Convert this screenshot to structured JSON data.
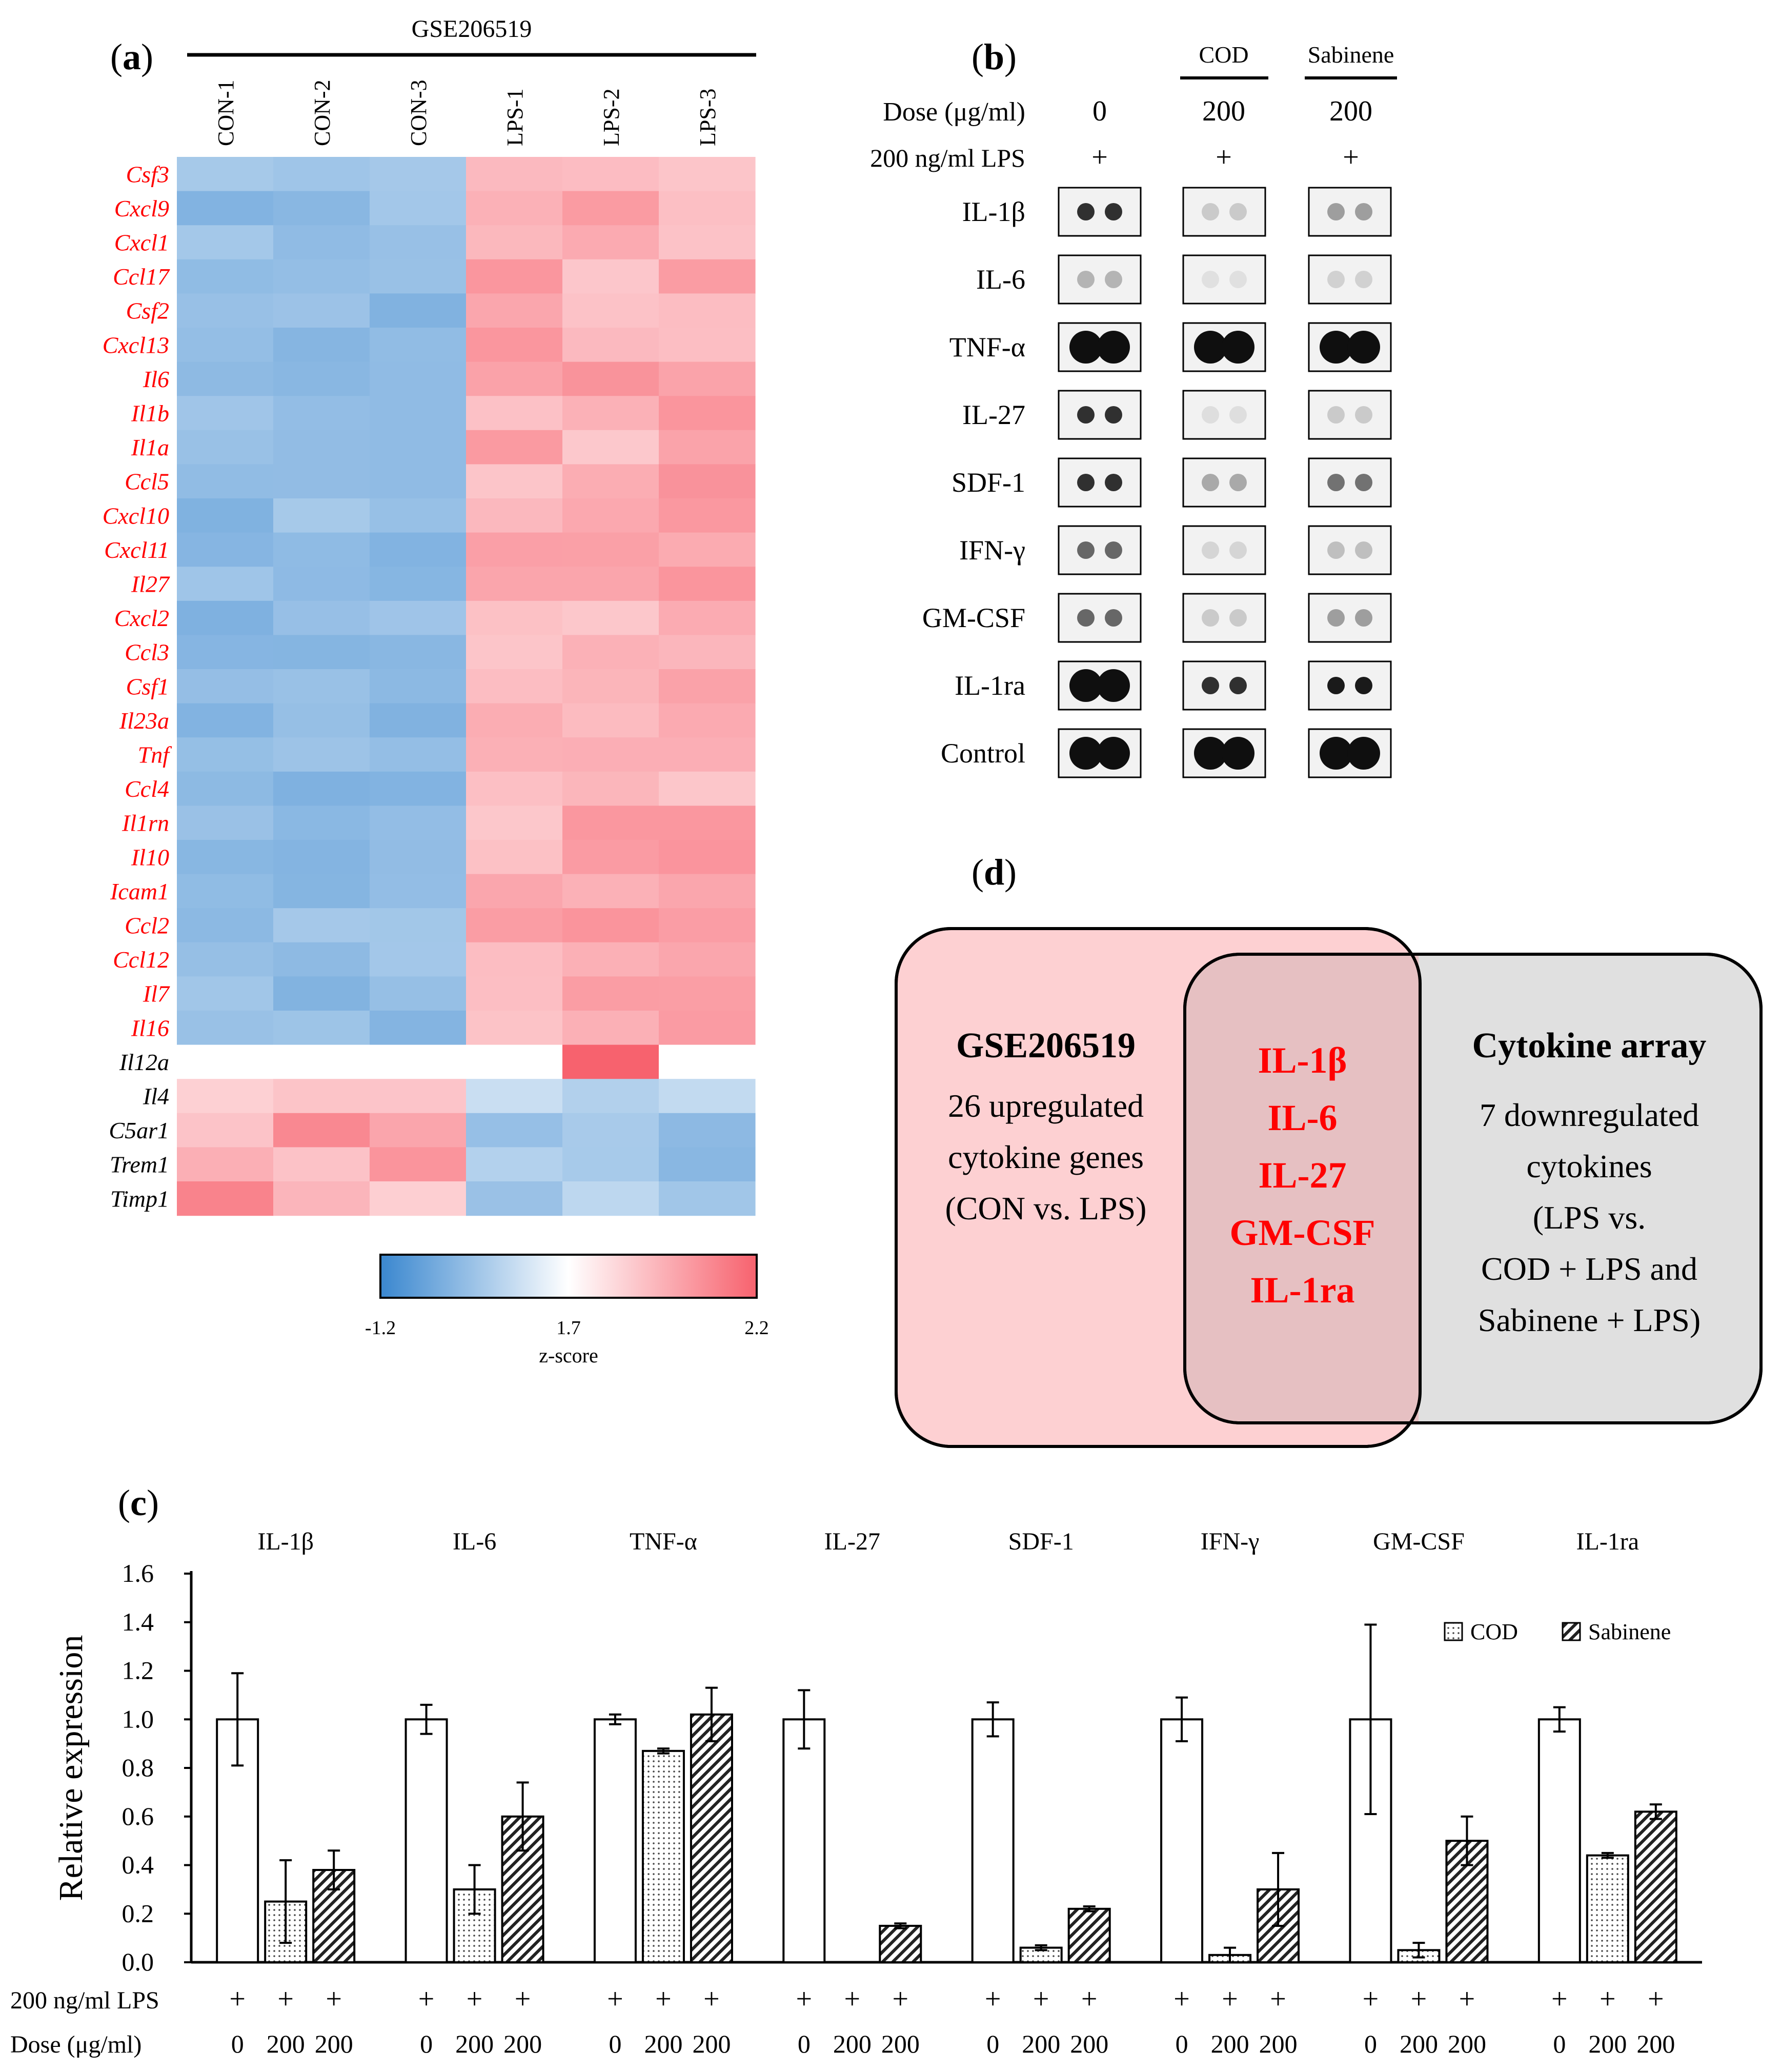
{
  "panel_labels": {
    "a": "a",
    "b": "b",
    "c": "c",
    "d": "d"
  },
  "heatmap": {
    "dataset": "GSE206519",
    "columns": [
      "CON-1",
      "CON-2",
      "CON-3",
      "LPS-1",
      "LPS-2",
      "LPS-3"
    ],
    "genes_red": [
      "Csf3",
      "Cxcl9",
      "Cxcl1",
      "Ccl17",
      "Csf2",
      "Cxcl13",
      "Il6",
      "Il1b",
      "Il1a",
      "Ccl5",
      "Cxcl10",
      "Cxcl11",
      "Il27",
      "Cxcl2",
      "Ccl3",
      "Csf1",
      "Il23a",
      "Tnf",
      "Ccl4",
      "Il1rn",
      "Il10",
      "Icam1",
      "Ccl2",
      "Ccl12",
      "Il7",
      "Il16"
    ],
    "genes_black": [
      "Il12a",
      "Il4",
      "C5ar1",
      "Trem1",
      "Timp1"
    ],
    "colorbar": {
      "min_label": "-1.2",
      "mid_label": "1.7",
      "max_label": "2.2",
      "label": "z-score",
      "low_color": "#3a87cf",
      "mid_color": "#ffffff",
      "high_color": "#f7626e"
    }
  },
  "array": {
    "group_cod": "COD",
    "group_sab": "Sabinene",
    "dose_label": "Dose (μg/ml)",
    "dose_values": [
      "0",
      "200",
      "200"
    ],
    "lps_label": "200 ng/ml LPS",
    "lps_values": [
      "+",
      "+",
      "+"
    ],
    "rows": [
      "IL-1β",
      "IL-6",
      "TNF-α",
      "IL-27",
      "SDF-1",
      "IFN-γ",
      "GM-CSF",
      "IL-1ra",
      "Control"
    ]
  },
  "venn": {
    "left_title": "GSE206519",
    "left_lines": [
      "26 upregulated",
      "cytokine genes",
      "(CON vs. LPS)"
    ],
    "overlap_items": [
      "IL-1β",
      "IL-6",
      "IL-27",
      "GM-CSF",
      "IL-1ra"
    ],
    "right_title": "Cytokine array",
    "right_lines": [
      "7 downregulated",
      "cytokines",
      "(LPS vs.",
      "COD + LPS and",
      "Sabinene + LPS)"
    ],
    "left_color": "#fdd0d2",
    "right_color": "#e0e0e0",
    "overlap_color": "#e6c0c2",
    "highlight_color": "#ff0000"
  },
  "chart_data": {
    "type": "bar",
    "ylabel": "Relative expression",
    "ylim": [
      0,
      1.6
    ],
    "yticks": [
      "0.0",
      "0.2",
      "0.4",
      "0.6",
      "0.8",
      "1.0",
      "1.2",
      "1.4",
      "1.6"
    ],
    "categories": [
      "IL-1β",
      "IL-6",
      "TNF-α",
      "IL-27",
      "SDF-1",
      "IFN-γ",
      "GM-CSF",
      "IL-1ra"
    ],
    "series": [
      {
        "name": "LPS",
        "values": [
          1.0,
          1.0,
          1.0,
          1.0,
          1.0,
          1.0,
          1.0,
          1.0
        ],
        "errors": [
          0.19,
          0.06,
          0.02,
          0.12,
          0.07,
          0.09,
          0.39,
          0.05
        ]
      },
      {
        "name": "COD",
        "values": [
          0.25,
          0.3,
          0.87,
          0.0,
          0.06,
          0.03,
          0.05,
          0.44
        ],
        "errors": [
          0.17,
          0.1,
          0.01,
          0.0,
          0.01,
          0.03,
          0.03,
          0.01
        ]
      },
      {
        "name": "Sabinene",
        "values": [
          0.38,
          0.6,
          1.02,
          0.15,
          0.22,
          0.3,
          0.5,
          0.62
        ],
        "errors": [
          0.08,
          0.14,
          0.11,
          0.01,
          0.01,
          0.15,
          0.1,
          0.03
        ]
      }
    ],
    "legend": [
      "COD",
      "Sabinene"
    ],
    "legend_position": "top-right",
    "row_lps_label": "200 ng/ml LPS",
    "row_lps_value": "+",
    "row_dose_label": "Dose (μg/ml)",
    "row_dose_values": [
      "0",
      "200",
      "200"
    ]
  }
}
